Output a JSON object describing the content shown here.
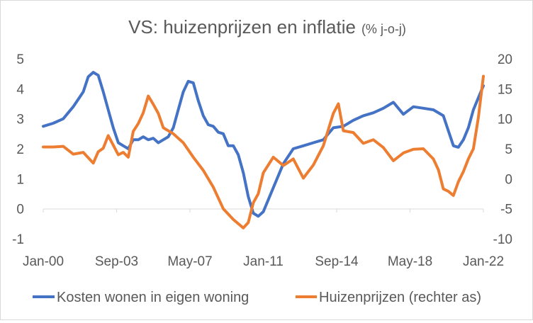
{
  "chart_data": {
    "type": "line",
    "title": "VS: huizenprijzen en inflatie",
    "subtitle": "(% j-o-j)",
    "x_tick_labels": [
      "Jan-00",
      "Sep-03",
      "May-07",
      "Jan-11",
      "Sep-14",
      "May-18",
      "Jan-22"
    ],
    "left_axis": {
      "ylim": [
        -1,
        5
      ],
      "ticks": [
        "-1",
        "0",
        "1",
        "2",
        "3",
        "4",
        "5"
      ]
    },
    "right_axis": {
      "ylim": [
        -10,
        20
      ],
      "ticks": [
        "-10",
        "-5",
        "0",
        "5",
        "10",
        "15",
        "20"
      ]
    },
    "x_range": [
      "2000-01",
      "2022-01"
    ],
    "grid": false,
    "legend_position": "bottom",
    "series": [
      {
        "name": "Kosten wonen in eigen woning",
        "axis": "left",
        "color": "#4472C4",
        "points": [
          [
            "2000-01",
            2.75
          ],
          [
            "2000-07",
            2.85
          ],
          [
            "2001-01",
            3.0
          ],
          [
            "2001-07",
            3.4
          ],
          [
            "2002-01",
            3.9
          ],
          [
            "2002-04",
            4.4
          ],
          [
            "2002-07",
            4.55
          ],
          [
            "2002-10",
            4.45
          ],
          [
            "2003-01",
            3.9
          ],
          [
            "2003-04",
            3.3
          ],
          [
            "2003-07",
            2.7
          ],
          [
            "2003-10",
            2.2
          ],
          [
            "2004-01",
            2.1
          ],
          [
            "2004-04",
            2.0
          ],
          [
            "2004-07",
            2.3
          ],
          [
            "2004-10",
            2.3
          ],
          [
            "2005-01",
            2.4
          ],
          [
            "2005-04",
            2.3
          ],
          [
            "2005-07",
            2.35
          ],
          [
            "2005-10",
            2.2
          ],
          [
            "2006-01",
            2.3
          ],
          [
            "2006-04",
            2.4
          ],
          [
            "2006-07",
            2.7
          ],
          [
            "2006-10",
            3.3
          ],
          [
            "2007-01",
            3.9
          ],
          [
            "2007-04",
            4.25
          ],
          [
            "2007-07",
            4.2
          ],
          [
            "2007-10",
            3.6
          ],
          [
            "2008-01",
            3.1
          ],
          [
            "2008-04",
            2.8
          ],
          [
            "2008-07",
            2.75
          ],
          [
            "2008-10",
            2.55
          ],
          [
            "2009-01",
            2.5
          ],
          [
            "2009-04",
            2.1
          ],
          [
            "2009-07",
            2.1
          ],
          [
            "2009-10",
            1.8
          ],
          [
            "2010-01",
            1.2
          ],
          [
            "2010-04",
            0.4
          ],
          [
            "2010-07",
            -0.15
          ],
          [
            "2010-10",
            -0.25
          ],
          [
            "2011-01",
            -0.1
          ],
          [
            "2011-07",
            0.7
          ],
          [
            "2012-01",
            1.5
          ],
          [
            "2012-07",
            2.0
          ],
          [
            "2013-01",
            2.1
          ],
          [
            "2013-07",
            2.2
          ],
          [
            "2014-01",
            2.3
          ],
          [
            "2014-07",
            2.7
          ],
          [
            "2015-01",
            2.75
          ],
          [
            "2015-07",
            2.95
          ],
          [
            "2016-01",
            3.1
          ],
          [
            "2016-07",
            3.2
          ],
          [
            "2017-01",
            3.35
          ],
          [
            "2017-07",
            3.55
          ],
          [
            "2018-01",
            3.15
          ],
          [
            "2018-07",
            3.4
          ],
          [
            "2019-01",
            3.35
          ],
          [
            "2019-07",
            3.3
          ],
          [
            "2020-01",
            3.1
          ],
          [
            "2020-04",
            2.6
          ],
          [
            "2020-07",
            2.1
          ],
          [
            "2020-10",
            2.05
          ],
          [
            "2021-01",
            2.3
          ],
          [
            "2021-04",
            2.7
          ],
          [
            "2021-07",
            3.3
          ],
          [
            "2021-10",
            3.7
          ],
          [
            "2022-01",
            4.1
          ]
        ]
      },
      {
        "name": "Huizenprijzen (rechter as)",
        "axis": "right",
        "color": "#ED7D31",
        "points": [
          [
            "2000-01",
            5.3
          ],
          [
            "2000-07",
            5.3
          ],
          [
            "2001-01",
            5.4
          ],
          [
            "2001-07",
            4.1
          ],
          [
            "2002-01",
            4.4
          ],
          [
            "2002-07",
            2.6
          ],
          [
            "2002-10",
            4.5
          ],
          [
            "2003-01",
            5.1
          ],
          [
            "2003-04",
            7.2
          ],
          [
            "2003-07",
            5.6
          ],
          [
            "2003-10",
            4.0
          ],
          [
            "2004-01",
            4.4
          ],
          [
            "2004-04",
            3.6
          ],
          [
            "2004-07",
            7.9
          ],
          [
            "2004-10",
            9.2
          ],
          [
            "2005-01",
            11.0
          ],
          [
            "2005-04",
            13.8
          ],
          [
            "2005-07",
            12.4
          ],
          [
            "2005-10",
            10.9
          ],
          [
            "2006-01",
            8.5
          ],
          [
            "2006-07",
            7.5
          ],
          [
            "2007-01",
            6.0
          ],
          [
            "2007-07",
            3.6
          ],
          [
            "2008-01",
            1.4
          ],
          [
            "2008-07",
            -1.4
          ],
          [
            "2009-01",
            -5.0
          ],
          [
            "2009-07",
            -6.8
          ],
          [
            "2010-01",
            -8.2
          ],
          [
            "2010-04",
            -7.3
          ],
          [
            "2010-07",
            -4.0
          ],
          [
            "2010-10",
            -2.5
          ],
          [
            "2011-01",
            1.0
          ],
          [
            "2011-07",
            3.6
          ],
          [
            "2012-01",
            2.2
          ],
          [
            "2012-07",
            3.3
          ],
          [
            "2013-01",
            0.1
          ],
          [
            "2013-07",
            2.3
          ],
          [
            "2014-01",
            5.5
          ],
          [
            "2014-07",
            10.9
          ],
          [
            "2014-10",
            12.5
          ],
          [
            "2015-01",
            8.0
          ],
          [
            "2015-07",
            7.7
          ],
          [
            "2016-01",
            5.9
          ],
          [
            "2016-07",
            6.5
          ],
          [
            "2017-01",
            5.2
          ],
          [
            "2017-07",
            3.0
          ],
          [
            "2018-01",
            4.3
          ],
          [
            "2018-07",
            4.9
          ],
          [
            "2019-01",
            5.0
          ],
          [
            "2019-07",
            3.3
          ],
          [
            "2019-10",
            1.5
          ],
          [
            "2020-01",
            -1.7
          ],
          [
            "2020-04",
            -2.1
          ],
          [
            "2020-07",
            -2.8
          ],
          [
            "2020-10",
            -0.5
          ],
          [
            "2021-01",
            1.2
          ],
          [
            "2021-04",
            3.3
          ],
          [
            "2021-07",
            5.0
          ],
          [
            "2021-10",
            10.2
          ],
          [
            "2022-01",
            17.1
          ]
        ]
      }
    ]
  }
}
